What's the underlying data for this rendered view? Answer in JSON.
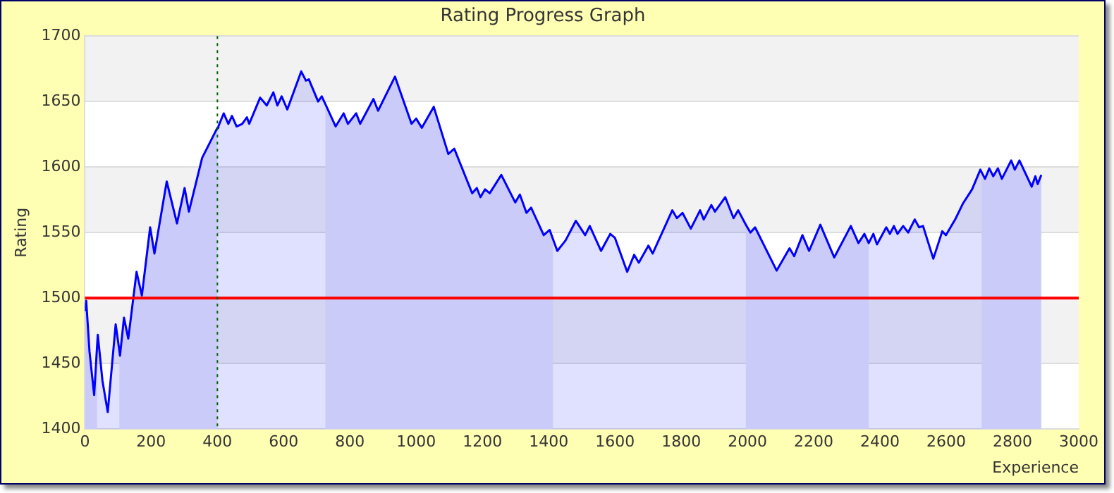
{
  "chart_data": {
    "type": "area",
    "title": "Rating Progress Graph",
    "xlabel": "Experience",
    "ylabel": "Rating",
    "xlim": [
      0,
      3000
    ],
    "xticks": [
      0,
      200,
      400,
      600,
      800,
      1000,
      1200,
      1400,
      1600,
      1800,
      2000,
      2200,
      2400,
      2600,
      2800,
      3000
    ],
    "ylim": [
      1400,
      1700
    ],
    "yticks": [
      1400,
      1450,
      1500,
      1550,
      1600,
      1650,
      1700
    ],
    "grid": "y",
    "legend": false,
    "marker": "none",
    "line_style": "solid",
    "series": [
      {
        "color": "#0000ff",
        "x": [
          0,
          4,
          14,
          28,
          37,
          39,
          53,
          69,
          93,
          104,
          106,
          118,
          131,
          156,
          172,
          197,
          210,
          247,
          278,
          301,
          314,
          354,
          400,
          403,
          419,
          433,
          444,
          458,
          475,
          489,
          496,
          529,
          549,
          569,
          581,
          594,
          611,
          653,
          667,
          676,
          704,
          715,
          726,
          757,
          781,
          794,
          819,
          831,
          871,
          885,
          936,
          986,
          1000,
          1017,
          1053,
          1097,
          1115,
          1169,
          1183,
          1194,
          1208,
          1222,
          1257,
          1299,
          1313,
          1333,
          1347,
          1385,
          1403,
          1413,
          1426,
          1451,
          1482,
          1510,
          1524,
          1558,
          1586,
          1600,
          1637,
          1658,
          1672,
          1701,
          1714,
          1773,
          1787,
          1804,
          1829,
          1857,
          1868,
          1891,
          1902,
          1933,
          1958,
          1972,
          1995,
          2009,
          2023,
          2088,
          2127,
          2141,
          2166,
          2186,
          2220,
          2262,
          2312,
          2335,
          2353,
          2366,
          2380,
          2391,
          2419,
          2430,
          2442,
          2453,
          2470,
          2485,
          2505,
          2518,
          2530,
          2561,
          2588,
          2599,
          2627,
          2650,
          2678,
          2703,
          2707,
          2717,
          2730,
          2742,
          2756,
          2768,
          2796,
          2807,
          2821,
          2858,
          2869,
          2876,
          2887
        ],
        "values": [
          1490,
          1498,
          1459,
          1426,
          1464,
          1472,
          1437,
          1413,
          1480,
          1460,
          1456,
          1485,
          1469,
          1520,
          1502,
          1554,
          1534,
          1589,
          1557,
          1584,
          1566,
          1607,
          1630,
          1631,
          1641,
          1633,
          1639,
          1631,
          1633,
          1638,
          1633,
          1653,
          1647,
          1657,
          1647,
          1654,
          1644,
          1673,
          1666,
          1667,
          1650,
          1654,
          1648,
          1631,
          1641,
          1633,
          1641,
          1633,
          1652,
          1643,
          1669,
          1633,
          1637,
          1630,
          1646,
          1610,
          1614,
          1580,
          1584,
          1577,
          1583,
          1580,
          1594,
          1573,
          1579,
          1565,
          1569,
          1548,
          1552,
          1545,
          1536,
          1544,
          1559,
          1548,
          1555,
          1536,
          1549,
          1546,
          1520,
          1533,
          1527,
          1540,
          1534,
          1567,
          1561,
          1565,
          1553,
          1567,
          1560,
          1571,
          1566,
          1577,
          1561,
          1567,
          1556,
          1550,
          1554,
          1521,
          1538,
          1532,
          1548,
          1536,
          1556,
          1531,
          1555,
          1542,
          1549,
          1542,
          1549,
          1541,
          1554,
          1549,
          1555,
          1549,
          1555,
          1550,
          1560,
          1554,
          1555,
          1530,
          1551,
          1548,
          1560,
          1572,
          1583,
          1598,
          1596,
          1591,
          1599,
          1593,
          1599,
          1591,
          1605,
          1598,
          1605,
          1585,
          1593,
          1587,
          1594
        ]
      }
    ],
    "ref_lines": [
      {
        "axis": "y",
        "value": 1500,
        "color": "#ff0000",
        "line_style": "solid"
      },
      {
        "axis": "x",
        "value": 400,
        "color": "#006400",
        "line_style": "dotted"
      }
    ],
    "bands": [
      {
        "axis": "x",
        "from": 0,
        "to": 37,
        "color": "#e8e8f9"
      },
      {
        "axis": "x",
        "from": 104,
        "to": 400,
        "color": "#e8e8f9"
      },
      {
        "axis": "x",
        "from": 726,
        "to": 1413,
        "color": "#e8e8f9"
      },
      {
        "axis": "x",
        "from": 1995,
        "to": 2366,
        "color": "#e8e8f9"
      },
      {
        "axis": "x",
        "from": 2707,
        "to": 2887,
        "color": "#e8e8f9"
      }
    ]
  }
}
